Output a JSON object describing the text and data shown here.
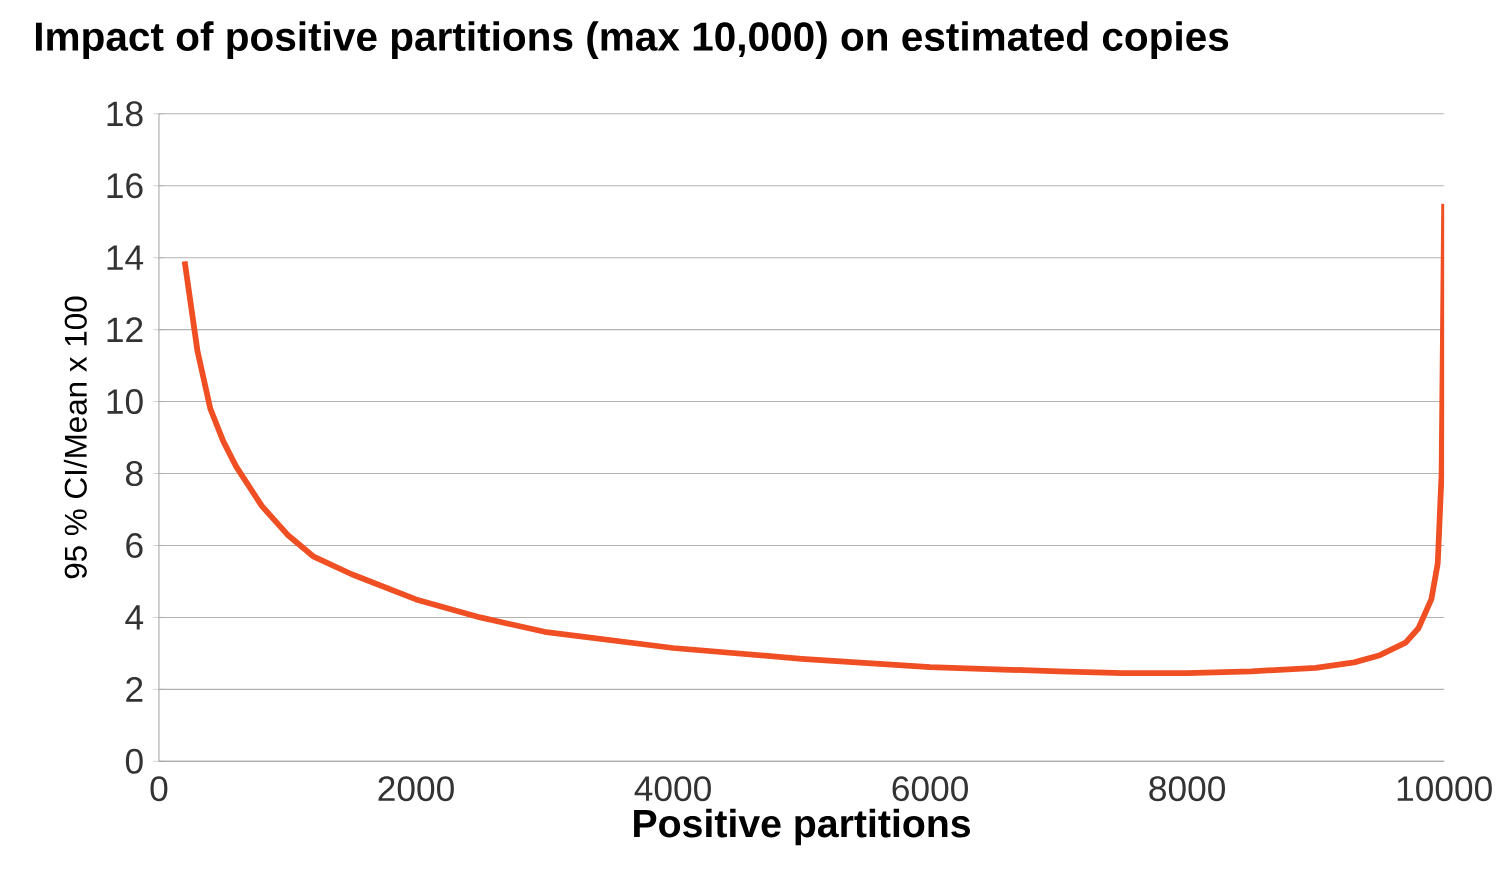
{
  "chart_data": {
    "type": "line",
    "title": "Impact of positive partitions (max 10,000) on estimated copies",
    "xlabel": "Positive partitions",
    "ylabel": "95 % CI/Mean x 100",
    "series": [
      {
        "color": "#f04e23",
        "x": [
          200,
          300,
          400,
          500,
          600,
          800,
          1000,
          1200,
          1500,
          2000,
          2500,
          3000,
          4000,
          5000,
          6000,
          7000,
          7500,
          8000,
          8500,
          9000,
          9300,
          9500,
          9700,
          9800,
          9900,
          9950,
          9980,
          10000
        ],
        "values": [
          13.9,
          11.4,
          9.8,
          8.9,
          8.2,
          7.1,
          6.3,
          5.7,
          5.2,
          4.5,
          4.0,
          3.6,
          3.15,
          2.85,
          2.62,
          2.5,
          2.45,
          2.45,
          2.5,
          2.6,
          2.75,
          2.95,
          3.3,
          3.7,
          4.5,
          5.5,
          8.0,
          15.5
        ]
      }
    ],
    "xlim": [
      0,
      10000
    ],
    "xticks": [
      0,
      2000,
      4000,
      6000,
      8000,
      10000
    ],
    "ylim": [
      0,
      18
    ],
    "yticks": [
      0,
      2,
      4,
      6,
      8,
      10,
      12,
      14,
      16,
      18
    ],
    "grid": "y",
    "marker": "none",
    "line_style": "solid"
  }
}
